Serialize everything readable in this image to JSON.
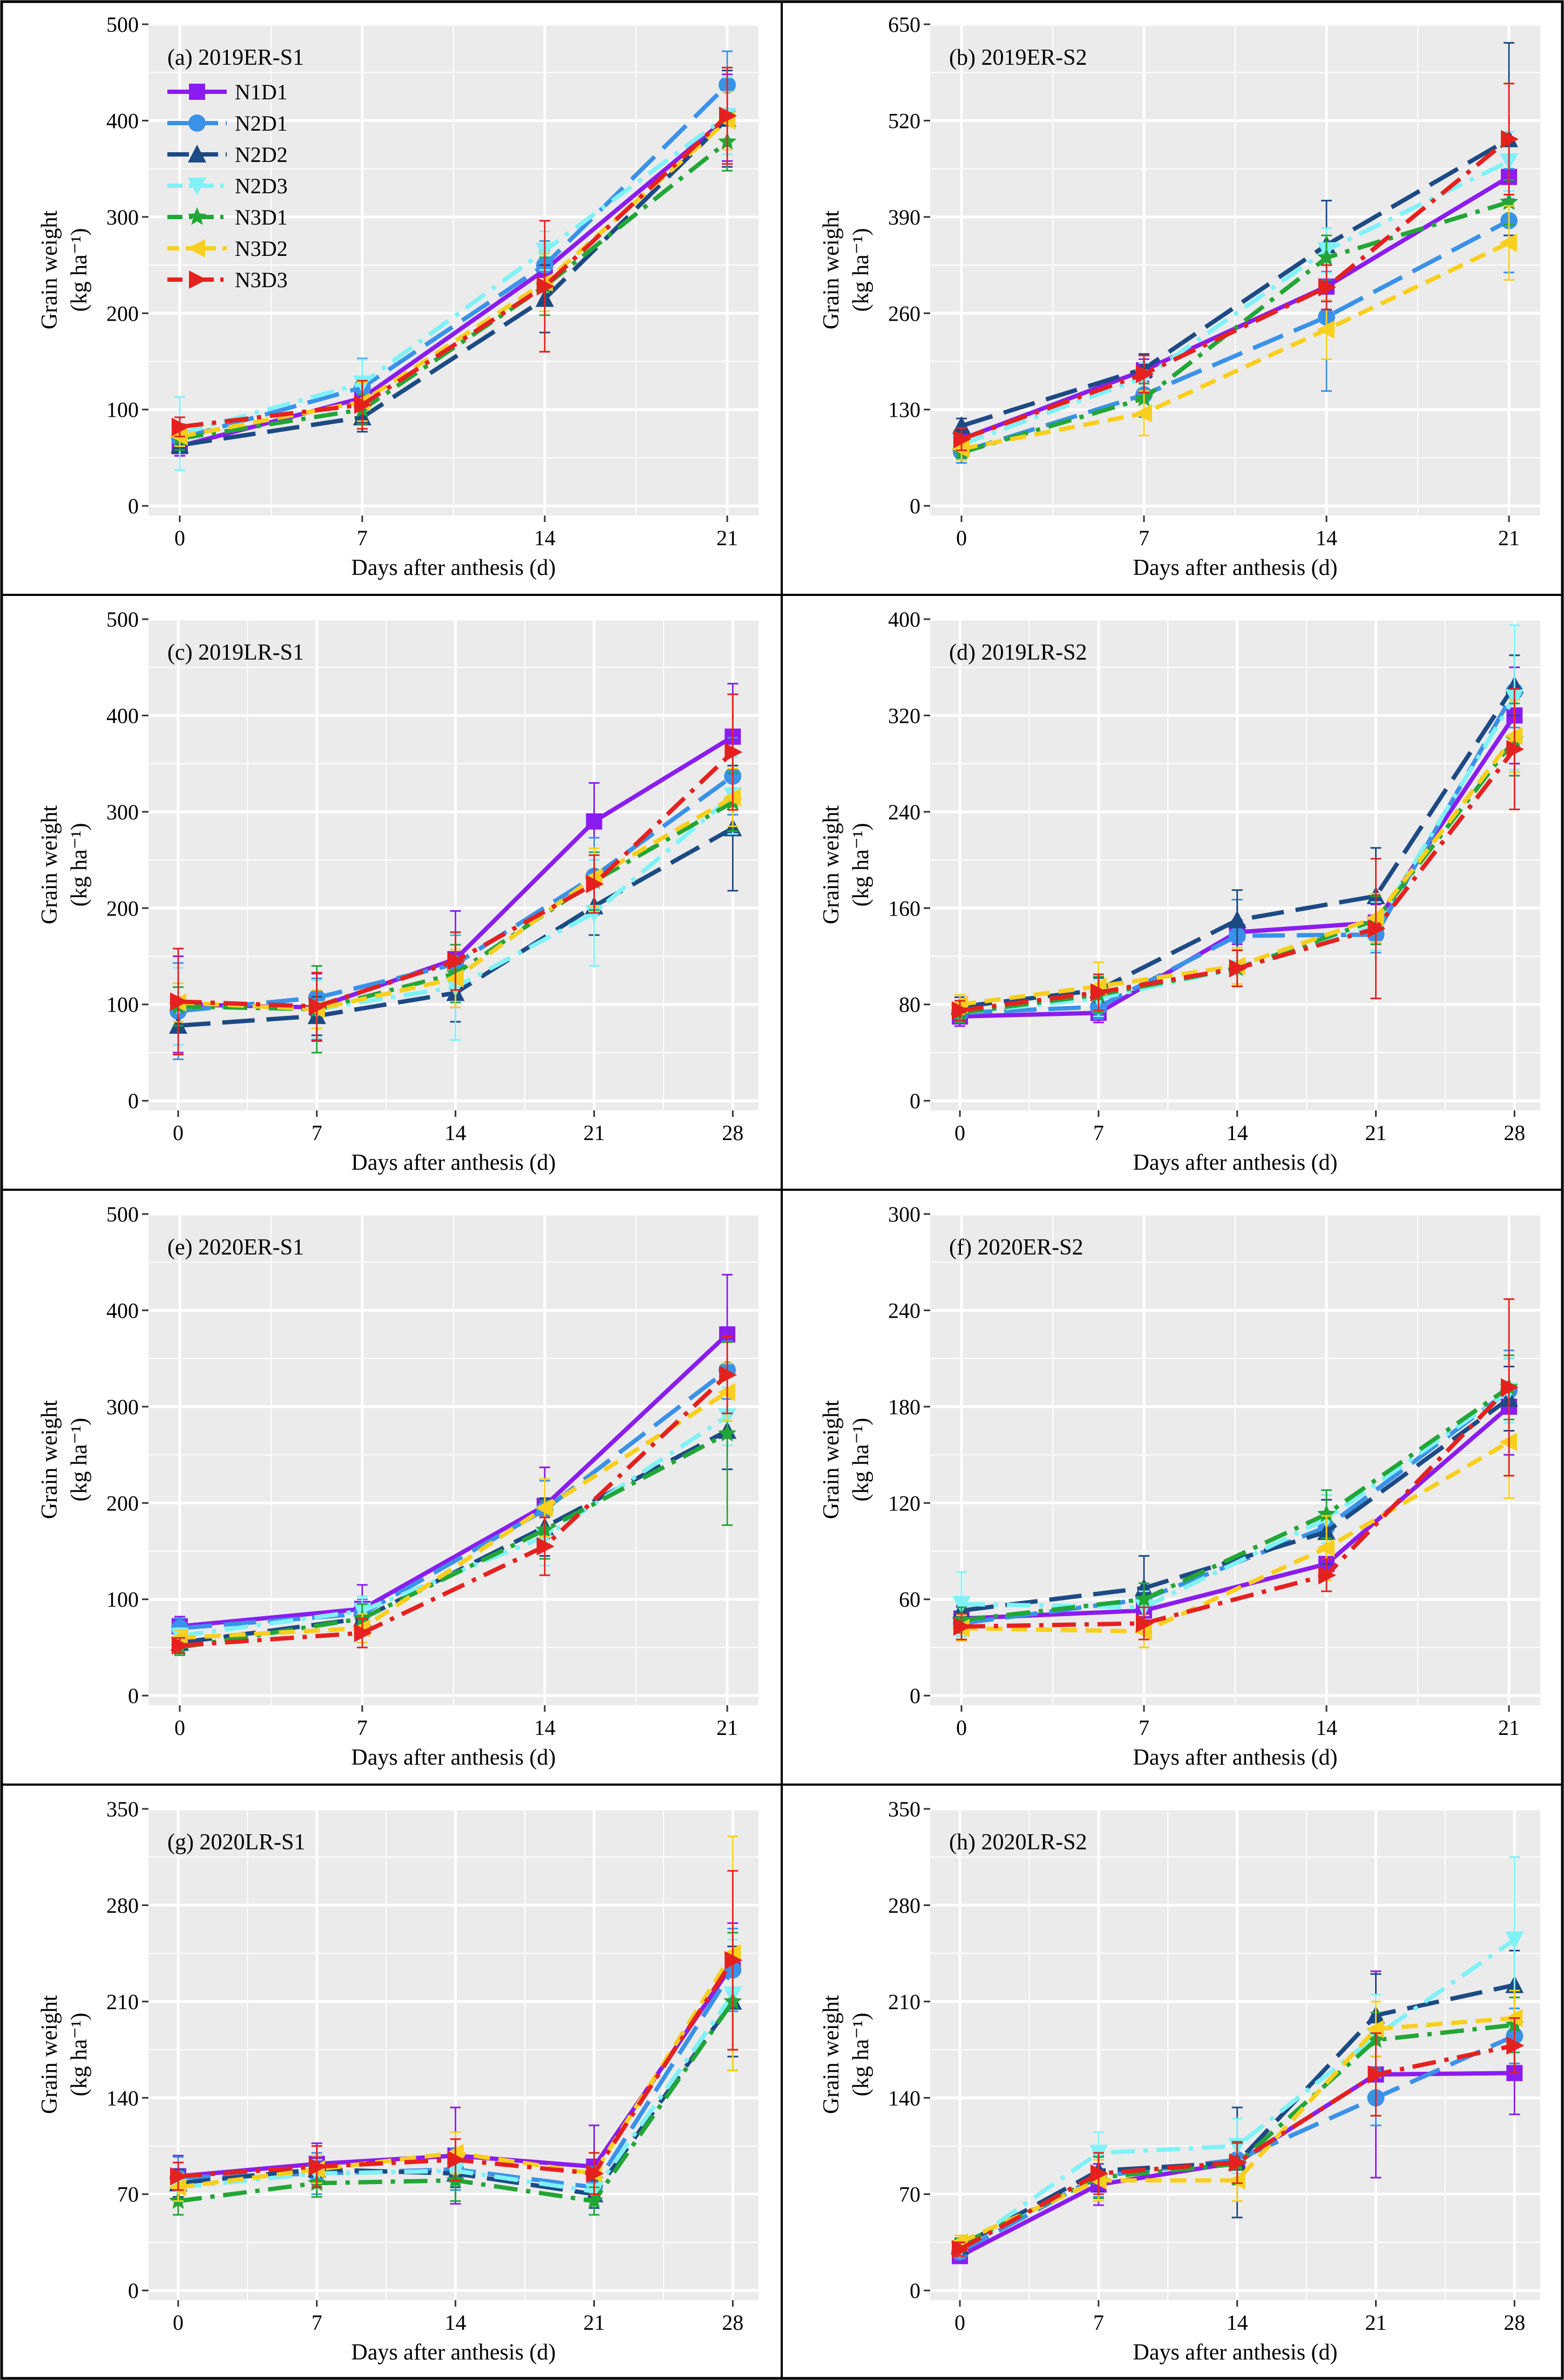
{
  "colors": {
    "N1D1": "#8b1cf0",
    "N2D1": "#3a92e8",
    "N2D2": "#1c4a84",
    "N2D3": "#7ff2f7",
    "N3D1": "#22a636",
    "N3D2": "#f9cf1e",
    "N3D3": "#e5211f",
    "panel_bg": "#ebebeb",
    "grid": "#ffffff"
  },
  "series_styles": {
    "N1D1": {
      "dash": "solid",
      "marker": "square"
    },
    "N2D1": {
      "dash": "longdash",
      "marker": "circle"
    },
    "N2D2": {
      "dash": "longdash",
      "marker": "triangle"
    },
    "N2D3": {
      "dash": "dashdot",
      "marker": "triangle-down"
    },
    "N3D1": {
      "dash": "dashdot",
      "marker": "star"
    },
    "N3D2": {
      "dash": "dash",
      "marker": "triangle-left"
    },
    "N3D3": {
      "dash": "dashdot",
      "marker": "triangle-right"
    }
  },
  "chart_data": [
    {
      "type": "line",
      "title": "(a) 2019ER-S1",
      "xlabel": "Days after anthesis (d)",
      "ylabel": "Grain weight",
      "ylabel_unit": "(kg ha⁻¹)",
      "x": [
        0,
        7,
        14,
        21
      ],
      "xlim": [
        -1.2,
        22.2
      ],
      "ylim": [
        -10,
        500
      ],
      "yticks": [
        0,
        100,
        200,
        300,
        400,
        500
      ],
      "legend": "top-left",
      "series": [
        {
          "name": "N1D1",
          "values": [
            62,
            112,
            245,
            403
          ],
          "err": [
            10,
            12,
            20,
            45
          ]
        },
        {
          "name": "N2D1",
          "values": [
            70,
            123,
            250,
            437
          ],
          "err": [
            15,
            30,
            25,
            35
          ]
        },
        {
          "name": "N2D2",
          "values": [
            63,
            92,
            215,
            402
          ],
          "err": [
            8,
            15,
            35,
            50
          ]
        },
        {
          "name": "N2D3",
          "values": [
            75,
            127,
            265,
            405
          ],
          "err": [
            38,
            25,
            20,
            40
          ]
        },
        {
          "name": "N3D1",
          "values": [
            70,
            100,
            228,
            378
          ],
          "err": [
            12,
            15,
            30,
            30
          ]
        },
        {
          "name": "N3D2",
          "values": [
            72,
            108,
            232,
            400
          ],
          "err": [
            10,
            20,
            30,
            30
          ]
        },
        {
          "name": "N3D3",
          "values": [
            82,
            105,
            228,
            405
          ],
          "err": [
            10,
            25,
            68,
            50
          ]
        }
      ]
    },
    {
      "type": "line",
      "title": "(b) 2019ER-S2",
      "xlabel": "Days after anthesis (d)",
      "ylabel": "Grain weight",
      "ylabel_unit": "(kg ha⁻¹)",
      "x": [
        0,
        7,
        14,
        21
      ],
      "xlim": [
        -1.2,
        22.2
      ],
      "ylim": [
        -13,
        650
      ],
      "yticks": [
        0,
        130,
        260,
        390,
        520,
        650
      ],
      "series": [
        {
          "name": "N1D1",
          "values": [
            90,
            183,
            296,
            444
          ],
          "err": [
            10,
            15,
            20,
            30
          ]
        },
        {
          "name": "N2D1",
          "values": [
            73,
            150,
            255,
            385
          ],
          "err": [
            15,
            30,
            100,
            70
          ]
        },
        {
          "name": "N2D2",
          "values": [
            108,
            185,
            352,
            495
          ],
          "err": [
            10,
            20,
            60,
            130
          ]
        },
        {
          "name": "N2D3",
          "values": [
            83,
            173,
            345,
            465
          ],
          "err": [
            10,
            20,
            30,
            40
          ]
        },
        {
          "name": "N3D1",
          "values": [
            72,
            145,
            335,
            410
          ],
          "err": [
            10,
            20,
            30,
            30
          ]
        },
        {
          "name": "N3D2",
          "values": [
            77,
            125,
            238,
            355
          ],
          "err": [
            15,
            30,
            40,
            50
          ]
        },
        {
          "name": "N3D3",
          "values": [
            90,
            178,
            295,
            495
          ],
          "err": [
            15,
            25,
            30,
            75
          ]
        }
      ]
    },
    {
      "type": "line",
      "title": "(c) 2019LR-S1",
      "xlabel": "Days after anthesis (d)",
      "ylabel": "Grain weight",
      "ylabel_unit": "(kg ha⁻¹)",
      "x": [
        0,
        7,
        14,
        21,
        28
      ],
      "xlim": [
        -1.5,
        29.3
      ],
      "ylim": [
        -10,
        500
      ],
      "yticks": [
        0,
        100,
        200,
        300,
        400,
        500
      ],
      "series": [
        {
          "name": "N1D1",
          "values": [
            100,
            97,
            147,
            290,
            378
          ],
          "err": [
            50,
            35,
            50,
            40,
            55
          ]
        },
        {
          "name": "N2D1",
          "values": [
            93,
            107,
            142,
            233,
            337
          ],
          "err": [
            50,
            20,
            30,
            40,
            40
          ]
        },
        {
          "name": "N2D2",
          "values": [
            78,
            88,
            112,
            202,
            283
          ],
          "err": [
            20,
            20,
            30,
            30,
            65
          ]
        },
        {
          "name": "N2D3",
          "values": [
            98,
            95,
            118,
            195,
            317
          ],
          "err": [
            40,
            30,
            55,
            55,
            40
          ]
        },
        {
          "name": "N3D1",
          "values": [
            98,
            95,
            132,
            228,
            310
          ],
          "err": [
            20,
            45,
            30,
            30,
            30
          ]
        },
        {
          "name": "N3D2",
          "values": [
            102,
            95,
            127,
            232,
            315
          ],
          "err": [
            20,
            20,
            30,
            30,
            30
          ]
        },
        {
          "name": "N3D3",
          "values": [
            103,
            98,
            145,
            225,
            362
          ],
          "err": [
            55,
            35,
            30,
            30,
            60
          ]
        }
      ]
    },
    {
      "type": "line",
      "title": "(d) 2019LR-S2",
      "xlabel": "Days after anthesis (d)",
      "ylabel": "Grain weight",
      "ylabel_unit": "(kg ha⁻¹)",
      "x": [
        0,
        7,
        14,
        21,
        28
      ],
      "xlim": [
        -1.5,
        29.3
      ],
      "ylim": [
        -8,
        400
      ],
      "yticks": [
        0,
        80,
        160,
        240,
        320,
        400
      ],
      "series": [
        {
          "name": "N1D1",
          "values": [
            70,
            73,
            140,
            148,
            320
          ],
          "err": [
            8,
            8,
            10,
            15,
            40
          ]
        },
        {
          "name": "N2D1",
          "values": [
            73,
            78,
            137,
            138,
            340
          ],
          "err": [
            8,
            10,
            30,
            15,
            30
          ]
        },
        {
          "name": "N2D2",
          "values": [
            78,
            92,
            150,
            170,
            345
          ],
          "err": [
            8,
            10,
            25,
            40,
            25
          ]
        },
        {
          "name": "N2D3",
          "values": [
            73,
            85,
            110,
            145,
            335
          ],
          "err": [
            8,
            15,
            15,
            20,
            60
          ]
        },
        {
          "name": "N3D1",
          "values": [
            73,
            88,
            110,
            150,
            300
          ],
          "err": [
            8,
            15,
            15,
            20,
            30
          ]
        },
        {
          "name": "N3D2",
          "values": [
            80,
            95,
            112,
            152,
            303
          ],
          "err": [
            8,
            20,
            15,
            20,
            30
          ]
        },
        {
          "name": "N3D3",
          "values": [
            75,
            90,
            110,
            143,
            292
          ],
          "err": [
            8,
            15,
            15,
            58,
            50
          ]
        }
      ]
    },
    {
      "type": "line",
      "title": "(e) 2020ER-S1",
      "xlabel": "Days after anthesis (d)",
      "ylabel": "Grain weight",
      "ylabel_unit": "(kg ha⁻¹)",
      "x": [
        0,
        7,
        14,
        21
      ],
      "xlim": [
        -1.2,
        22.2
      ],
      "ylim": [
        -10,
        500
      ],
      "yticks": [
        0,
        100,
        200,
        300,
        400,
        500
      ],
      "series": [
        {
          "name": "N1D1",
          "values": [
            72,
            90,
            197,
            375
          ],
          "err": [
            10,
            25,
            40,
            62
          ]
        },
        {
          "name": "N2D1",
          "values": [
            70,
            85,
            193,
            338
          ],
          "err": [
            10,
            15,
            30,
            30
          ]
        },
        {
          "name": "N2D2",
          "values": [
            55,
            80,
            175,
            275
          ],
          "err": [
            8,
            10,
            30,
            40
          ]
        },
        {
          "name": "N2D3",
          "values": [
            62,
            88,
            165,
            290
          ],
          "err": [
            8,
            15,
            30,
            30
          ]
        },
        {
          "name": "N3D1",
          "values": [
            50,
            80,
            172,
            272
          ],
          "err": [
            8,
            15,
            30,
            95
          ]
        },
        {
          "name": "N3D2",
          "values": [
            60,
            70,
            195,
            315
          ],
          "err": [
            8,
            15,
            30,
            30
          ]
        },
        {
          "name": "N3D3",
          "values": [
            52,
            65,
            155,
            333
          ],
          "err": [
            8,
            15,
            30,
            40
          ]
        }
      ]
    },
    {
      "type": "line",
      "title": "(f) 2020ER-S2",
      "xlabel": "Days after anthesis (d)",
      "ylabel": "Grain weight",
      "ylabel_unit": "(kg ha⁻¹)",
      "x": [
        0,
        7,
        14,
        21
      ],
      "xlim": [
        -1.2,
        22.2
      ],
      "ylim": [
        -6,
        300
      ],
      "yticks": [
        0,
        60,
        120,
        180,
        240,
        300
      ],
      "series": [
        {
          "name": "N1D1",
          "values": [
            48,
            53,
            82,
            180
          ],
          "err": [
            8,
            8,
            10,
            30
          ]
        },
        {
          "name": "N2D1",
          "values": [
            45,
            60,
            105,
            190
          ],
          "err": [
            8,
            10,
            20,
            25
          ]
        },
        {
          "name": "N2D2",
          "values": [
            53,
            67,
            102,
            185
          ],
          "err": [
            8,
            20,
            20,
            20
          ]
        },
        {
          "name": "N2D3",
          "values": [
            57,
            55,
            110,
            190
          ],
          "err": [
            20,
            10,
            15,
            20
          ]
        },
        {
          "name": "N3D1",
          "values": [
            47,
            60,
            113,
            192
          ],
          "err": [
            8,
            10,
            15,
            20
          ]
        },
        {
          "name": "N3D2",
          "values": [
            42,
            40,
            92,
            158
          ],
          "err": [
            8,
            10,
            20,
            35
          ]
        },
        {
          "name": "N3D3",
          "values": [
            43,
            45,
            75,
            192
          ],
          "err": [
            8,
            10,
            10,
            55
          ]
        }
      ]
    },
    {
      "type": "line",
      "title": "(g) 2020LR-S1",
      "xlabel": "Days after anthesis (d)",
      "ylabel": "Grain weight",
      "ylabel_unit": "(kg ha⁻¹)",
      "x": [
        0,
        7,
        14,
        21,
        28
      ],
      "xlim": [
        -1.5,
        29.3
      ],
      "ylim": [
        -7,
        350
      ],
      "yticks": [
        0,
        70,
        140,
        210,
        280,
        350
      ],
      "series": [
        {
          "name": "N1D1",
          "values": [
            83,
            92,
            98,
            90,
            237
          ],
          "err": [
            15,
            15,
            35,
            30,
            30
          ]
        },
        {
          "name": "N2D1",
          "values": [
            82,
            85,
            88,
            75,
            233
          ],
          "err": [
            15,
            15,
            15,
            15,
            30
          ]
        },
        {
          "name": "N2D2",
          "values": [
            78,
            88,
            85,
            70,
            210
          ],
          "err": [
            10,
            10,
            10,
            10,
            40
          ]
        },
        {
          "name": "N2D3",
          "values": [
            75,
            85,
            87,
            72,
            215
          ],
          "err": [
            10,
            10,
            10,
            10,
            40
          ]
        },
        {
          "name": "N3D1",
          "values": [
            65,
            78,
            80,
            65,
            210
          ],
          "err": [
            10,
            10,
            15,
            10,
            50
          ]
        },
        {
          "name": "N3D2",
          "values": [
            75,
            88,
            100,
            85,
            245
          ],
          "err": [
            10,
            10,
            15,
            15,
            85
          ]
        },
        {
          "name": "N3D3",
          "values": [
            83,
            90,
            95,
            85,
            240
          ],
          "err": [
            10,
            15,
            15,
            15,
            65
          ]
        }
      ]
    },
    {
      "type": "line",
      "title": "(h) 2020LR-S2",
      "xlabel": "Days after anthesis (d)",
      "ylabel": "Grain weight",
      "ylabel_unit": "(kg ha⁻¹)",
      "x": [
        0,
        7,
        14,
        21,
        28
      ],
      "xlim": [
        -1.5,
        29.3
      ],
      "ylim": [
        -7,
        350
      ],
      "yticks": [
        0,
        70,
        140,
        210,
        280,
        350
      ],
      "series": [
        {
          "name": "N1D1",
          "values": [
            25,
            77,
            93,
            157,
            158
          ],
          "err": [
            5,
            15,
            15,
            75,
            30
          ]
        },
        {
          "name": "N2D1",
          "values": [
            28,
            83,
            95,
            140,
            185
          ],
          "err": [
            5,
            15,
            15,
            20,
            20
          ]
        },
        {
          "name": "N2D2",
          "values": [
            32,
            87,
            93,
            200,
            222
          ],
          "err": [
            5,
            15,
            40,
            30,
            25
          ]
        },
        {
          "name": "N2D3",
          "values": [
            30,
            100,
            105,
            185,
            255
          ],
          "err": [
            5,
            15,
            20,
            30,
            60
          ]
        },
        {
          "name": "N3D1",
          "values": [
            33,
            82,
            92,
            182,
            193
          ],
          "err": [
            5,
            15,
            15,
            20,
            20
          ]
        },
        {
          "name": "N3D2",
          "values": [
            35,
            80,
            80,
            190,
            198
          ],
          "err": [
            5,
            15,
            15,
            20,
            20
          ]
        },
        {
          "name": "N3D3",
          "values": [
            30,
            85,
            93,
            157,
            178
          ],
          "err": [
            5,
            15,
            15,
            30,
            20
          ]
        }
      ]
    }
  ]
}
